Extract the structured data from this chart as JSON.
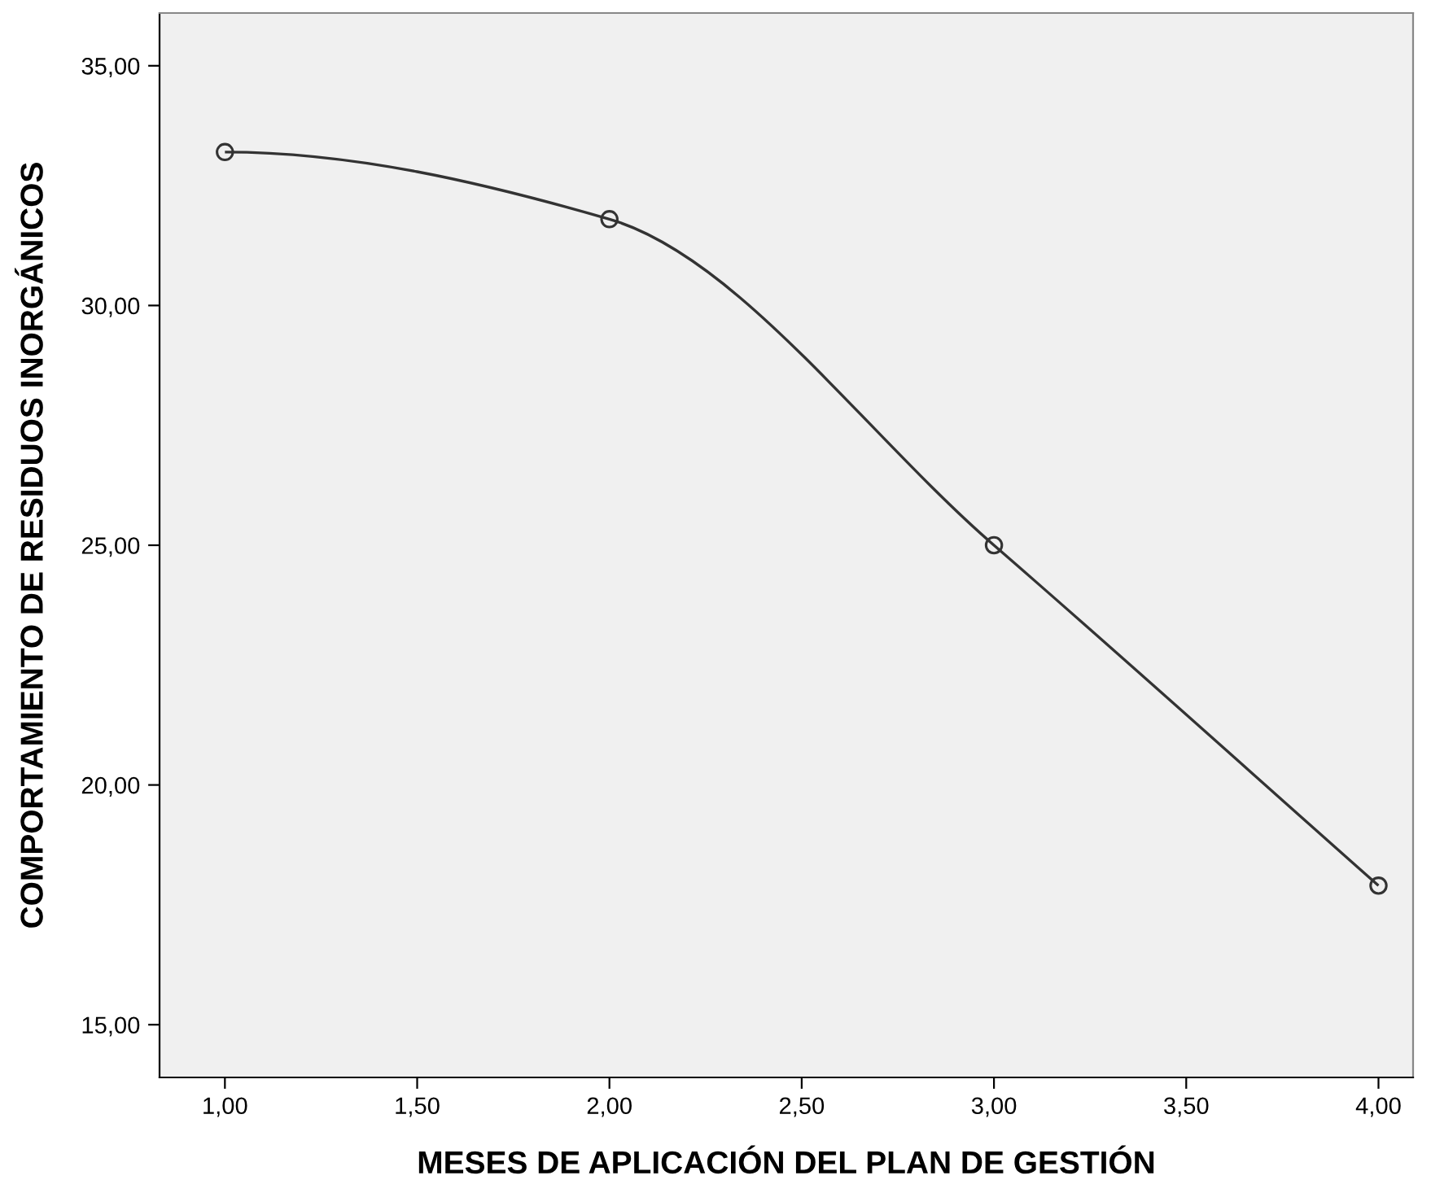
{
  "chart_data": {
    "type": "line",
    "xlabel": "MESES DE APLICACIÓN DEL PLAN DE GESTIÓN",
    "ylabel": "COMPORTAMIENTO DE RESIDUOS INORGÁNICOS",
    "x": [
      1,
      2,
      3,
      4
    ],
    "series": [
      {
        "color": "#333333",
        "values": [
          33.2,
          31.8,
          25.0,
          17.9
        ]
      }
    ],
    "marker": "circle",
    "line_style": "solid",
    "grid": false,
    "legend": false,
    "xlim": [
      0.83,
      4.09
    ],
    "ylim": [
      13.9,
      36.1
    ],
    "xticks": [
      {
        "value": 1,
        "label": "1,00"
      },
      {
        "value": 1.5,
        "label": "1,50"
      },
      {
        "value": 2,
        "label": "2,00"
      },
      {
        "value": 2.5,
        "label": "2,50"
      },
      {
        "value": 3,
        "label": "3,00"
      },
      {
        "value": 3.5,
        "label": "3,50"
      },
      {
        "value": 4,
        "label": "4,00"
      }
    ],
    "yticks": [
      {
        "value": 15,
        "label": "15,00"
      },
      {
        "value": 20,
        "label": "20,00"
      },
      {
        "value": 25,
        "label": "25,00"
      },
      {
        "value": 30,
        "label": "30,00"
      },
      {
        "value": 35,
        "label": "35,00"
      }
    ]
  }
}
